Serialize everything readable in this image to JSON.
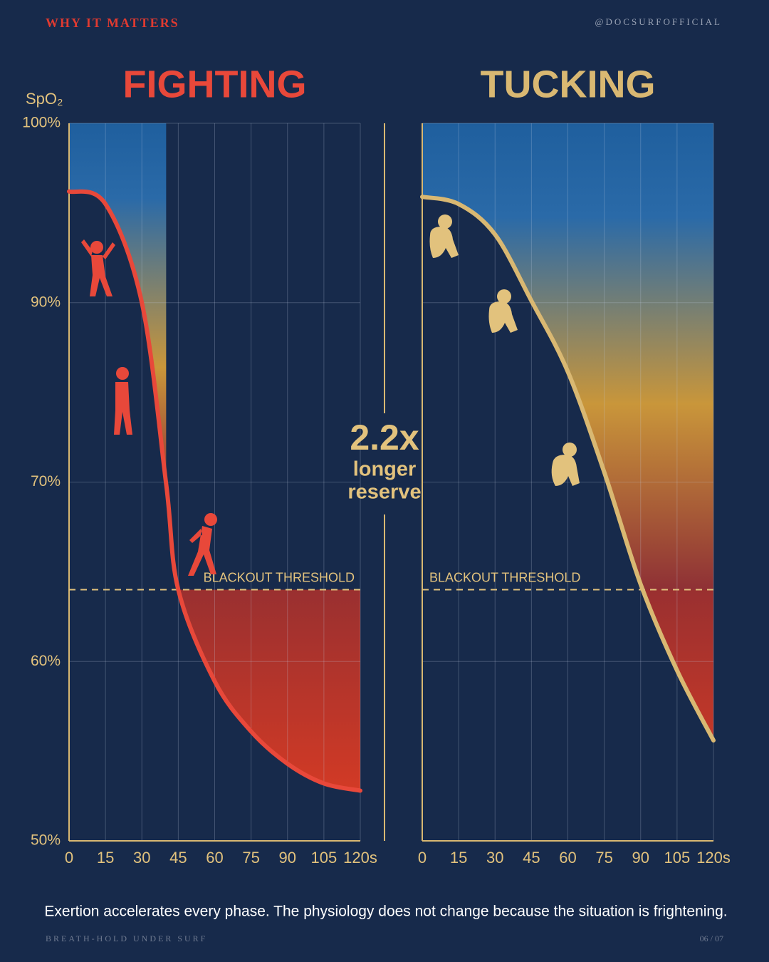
{
  "header": {
    "kicker": "WHY IT MATTERS",
    "handle": "@DOCSURFOFFICIAL"
  },
  "chart_data": [
    {
      "type": "line",
      "title": "FIGHTING",
      "ylabel": "SpO₂",
      "color": "#e8483a",
      "x": [
        0,
        15,
        30,
        40,
        45,
        60,
        75,
        90,
        105,
        120
      ],
      "values": [
        96.2,
        95.5,
        90,
        69.9,
        64,
        58.9,
        56.1,
        54.3,
        53.2,
        52.8
      ],
      "threshold": 64,
      "threshold_label": "BLACKOUT THRESHOLD",
      "xlim": [
        0,
        120
      ],
      "ylim": [
        50,
        100
      ],
      "xticks": [
        0,
        15,
        30,
        45,
        60,
        75,
        90,
        105,
        {
          "value": 120,
          "label": "120s"
        }
      ],
      "yticks": [
        {
          "value": 50,
          "label": "50%"
        },
        {
          "value": 60,
          "label": "60%"
        },
        {
          "value": 70,
          "label": "70%"
        },
        {
          "value": 90,
          "label": "90%"
        },
        {
          "value": 100,
          "label": "100%"
        }
      ],
      "grid": true
    },
    {
      "type": "line",
      "title": "TUCKING",
      "color": "#d9b872",
      "x": [
        0,
        15,
        30,
        45,
        60,
        75,
        90,
        105,
        120
      ],
      "values": [
        95.9,
        95.5,
        93.8,
        90.1,
        82.3,
        71.1,
        64.3,
        59.5,
        55.6
      ],
      "threshold": 64,
      "threshold_label": "BLACKOUT THRESHOLD",
      "xlim": [
        0,
        120
      ],
      "ylim": [
        50,
        100
      ],
      "xticks": [
        0,
        15,
        30,
        45,
        60,
        75,
        90,
        105,
        {
          "value": 120,
          "label": "120s"
        }
      ],
      "grid": true
    }
  ],
  "callout": {
    "ratio": "2.2x",
    "lines": [
      "longer",
      "reserve"
    ]
  },
  "caption": "Exertion accelerates every phase. The physiology does not change because the situation is frightening.",
  "footer": {
    "left": "BREATH-HOLD UNDER SURF",
    "right": "06 / 07"
  }
}
